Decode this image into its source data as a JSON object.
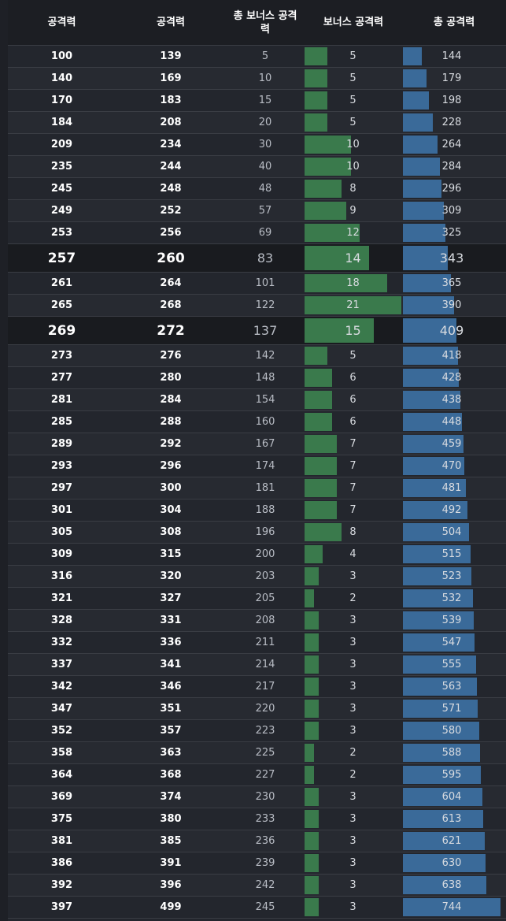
{
  "header": {
    "col1": "공격력",
    "col2": "공격력",
    "col3": "총 보너스 공격\n력",
    "col4": "보너스 공격력",
    "col5": "총 공격력"
  },
  "colors": {
    "bonus_bar": "#3a7a4c",
    "total_bar": "#3a6a99",
    "background": "#23262d",
    "highlight_row": "#191b1f"
  },
  "bar_scale": {
    "bonus_max": 21,
    "total_max": 744
  },
  "rows": [
    {
      "atk": "100",
      "atk2": "139",
      "total_bonus": "5",
      "bonus": "5",
      "total": "144"
    },
    {
      "atk": "140",
      "atk2": "169",
      "total_bonus": "10",
      "bonus": "5",
      "total": "179"
    },
    {
      "atk": "170",
      "atk2": "183",
      "total_bonus": "15",
      "bonus": "5",
      "total": "198"
    },
    {
      "atk": "184",
      "atk2": "208",
      "total_bonus": "20",
      "bonus": "5",
      "total": "228"
    },
    {
      "atk": "209",
      "atk2": "234",
      "total_bonus": "30",
      "bonus": "10",
      "total": "264"
    },
    {
      "atk": "235",
      "atk2": "244",
      "total_bonus": "40",
      "bonus": "10",
      "total": "284"
    },
    {
      "atk": "245",
      "atk2": "248",
      "total_bonus": "48",
      "bonus": "8",
      "total": "296"
    },
    {
      "atk": "249",
      "atk2": "252",
      "total_bonus": "57",
      "bonus": "9",
      "total": "309"
    },
    {
      "atk": "253",
      "atk2": "256",
      "total_bonus": "69",
      "bonus": "12",
      "total": "325"
    },
    {
      "atk": "257",
      "atk2": "260",
      "total_bonus": "83",
      "bonus": "14",
      "total": "343",
      "highlight": true
    },
    {
      "atk": "261",
      "atk2": "264",
      "total_bonus": "101",
      "bonus": "18",
      "total": "365"
    },
    {
      "atk": "265",
      "atk2": "268",
      "total_bonus": "122",
      "bonus": "21",
      "total": "390"
    },
    {
      "atk": "269",
      "atk2": "272",
      "total_bonus": "137",
      "bonus": "15",
      "total": "409",
      "highlight": true
    },
    {
      "atk": "273",
      "atk2": "276",
      "total_bonus": "142",
      "bonus": "5",
      "total": "418"
    },
    {
      "atk": "277",
      "atk2": "280",
      "total_bonus": "148",
      "bonus": "6",
      "total": "428"
    },
    {
      "atk": "281",
      "atk2": "284",
      "total_bonus": "154",
      "bonus": "6",
      "total": "438"
    },
    {
      "atk": "285",
      "atk2": "288",
      "total_bonus": "160",
      "bonus": "6",
      "total": "448"
    },
    {
      "atk": "289",
      "atk2": "292",
      "total_bonus": "167",
      "bonus": "7",
      "total": "459"
    },
    {
      "atk": "293",
      "atk2": "296",
      "total_bonus": "174",
      "bonus": "7",
      "total": "470"
    },
    {
      "atk": "297",
      "atk2": "300",
      "total_bonus": "181",
      "bonus": "7",
      "total": "481"
    },
    {
      "atk": "301",
      "atk2": "304",
      "total_bonus": "188",
      "bonus": "7",
      "total": "492"
    },
    {
      "atk": "305",
      "atk2": "308",
      "total_bonus": "196",
      "bonus": "8",
      "total": "504"
    },
    {
      "atk": "309",
      "atk2": "315",
      "total_bonus": "200",
      "bonus": "4",
      "total": "515"
    },
    {
      "atk": "316",
      "atk2": "320",
      "total_bonus": "203",
      "bonus": "3",
      "total": "523"
    },
    {
      "atk": "321",
      "atk2": "327",
      "total_bonus": "205",
      "bonus": "2",
      "total": "532"
    },
    {
      "atk": "328",
      "atk2": "331",
      "total_bonus": "208",
      "bonus": "3",
      "total": "539"
    },
    {
      "atk": "332",
      "atk2": "336",
      "total_bonus": "211",
      "bonus": "3",
      "total": "547"
    },
    {
      "atk": "337",
      "atk2": "341",
      "total_bonus": "214",
      "bonus": "3",
      "total": "555"
    },
    {
      "atk": "342",
      "atk2": "346",
      "total_bonus": "217",
      "bonus": "3",
      "total": "563"
    },
    {
      "atk": "347",
      "atk2": "351",
      "total_bonus": "220",
      "bonus": "3",
      "total": "571"
    },
    {
      "atk": "352",
      "atk2": "357",
      "total_bonus": "223",
      "bonus": "3",
      "total": "580"
    },
    {
      "atk": "358",
      "atk2": "363",
      "total_bonus": "225",
      "bonus": "2",
      "total": "588"
    },
    {
      "atk": "364",
      "atk2": "368",
      "total_bonus": "227",
      "bonus": "2",
      "total": "595"
    },
    {
      "atk": "369",
      "atk2": "374",
      "total_bonus": "230",
      "bonus": "3",
      "total": "604"
    },
    {
      "atk": "375",
      "atk2": "380",
      "total_bonus": "233",
      "bonus": "3",
      "total": "613"
    },
    {
      "atk": "381",
      "atk2": "385",
      "total_bonus": "236",
      "bonus": "3",
      "total": "621"
    },
    {
      "atk": "386",
      "atk2": "391",
      "total_bonus": "239",
      "bonus": "3",
      "total": "630"
    },
    {
      "atk": "392",
      "atk2": "396",
      "total_bonus": "242",
      "bonus": "3",
      "total": "638"
    },
    {
      "atk": "397",
      "atk2": "499",
      "total_bonus": "245",
      "bonus": "3",
      "total": "744"
    }
  ]
}
